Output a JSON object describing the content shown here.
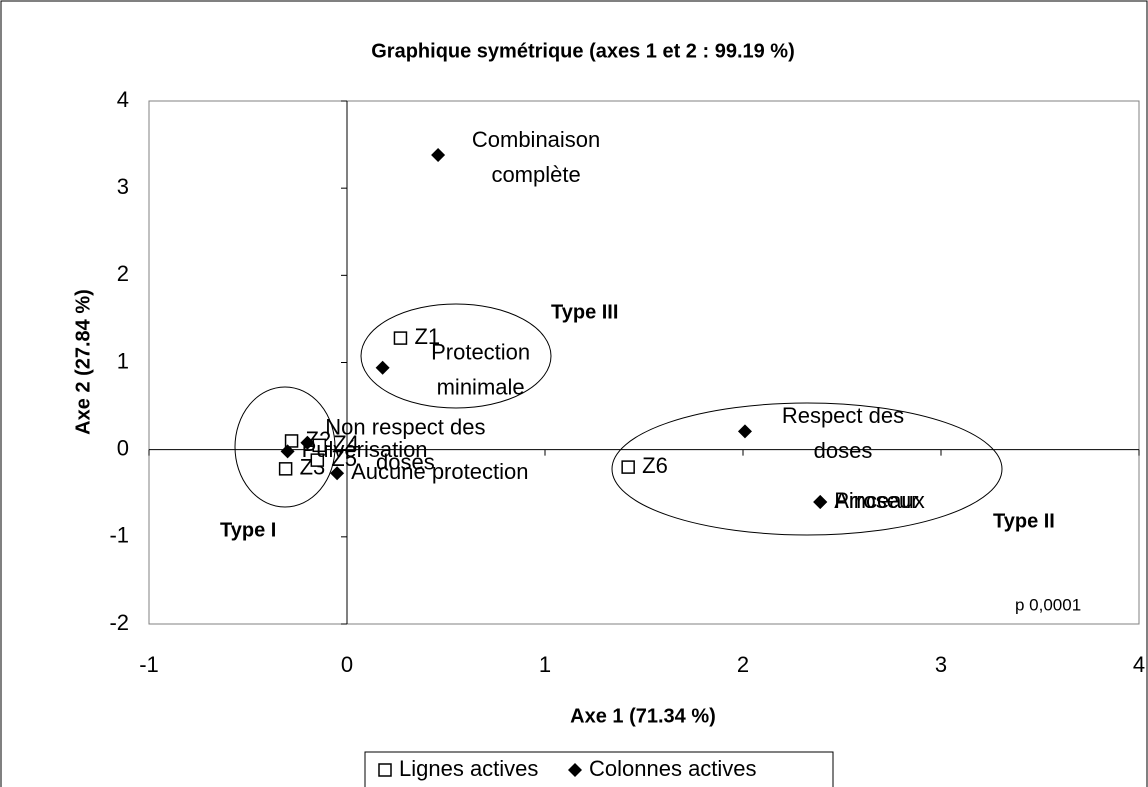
{
  "chart_data": {
    "type": "scatter",
    "title": "Graphique symétrique (axes 1 et 2 : 99.19 %)",
    "x_label": "Axe 1 (71.34 %)",
    "y_label": "Axe 2 (27.84 %)",
    "xlim": [
      -1,
      4
    ],
    "xticks": [
      -1,
      0,
      1,
      2,
      3,
      4
    ],
    "ylim": [
      -2,
      4
    ],
    "yticks": [
      -2,
      -1,
      0,
      1,
      2,
      3,
      4
    ],
    "grid": false,
    "legend": "bottom",
    "annotations": [
      "Type I",
      "Type II",
      "Type III",
      "p  0,0001"
    ],
    "series": [
      {
        "name": "Lignes actives",
        "color": "#000000",
        "marker": "square",
        "labels": [
          [
            "Z1"
          ],
          [
            "Z6"
          ],
          [
            "Z2"
          ],
          [
            "Z3"
          ],
          [
            "Z4"
          ],
          [
            "Z5"
          ]
        ],
        "x": [
          0.27,
          1.42,
          -0.28,
          -0.31,
          -0.14,
          -0.15
        ],
        "values": [
          1.28,
          -0.2,
          0.1,
          -0.22,
          0.05,
          -0.12
        ]
      },
      {
        "name": "Colonnes actives",
        "color": "#000000",
        "marker": "diamond",
        "labels": [
          [
            "Combinaison",
            "complète"
          ],
          [
            "Protection",
            "minimale"
          ],
          [
            "Respect des",
            "doses"
          ],
          [
            "Arroseur"
          ],
          [
            "Pinceaux"
          ],
          [
            "Non respect des",
            "doses"
          ],
          [
            "Pulvérisation"
          ],
          [
            "Aucune protection"
          ]
        ],
        "x": [
          0.46,
          0.18,
          2.01,
          2.39,
          2.39,
          -0.2,
          -0.3,
          -0.05
        ],
        "values": [
          3.38,
          0.94,
          0.21,
          -0.6,
          -0.6,
          0.08,
          -0.02,
          -0.27
        ]
      }
    ]
  }
}
